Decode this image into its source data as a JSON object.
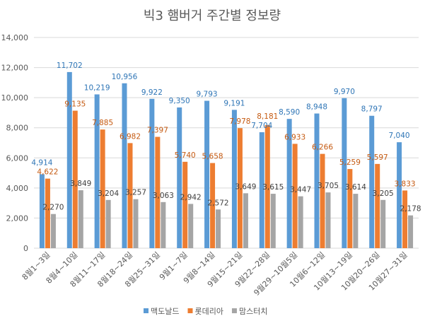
{
  "chart_data": {
    "type": "bar",
    "title": "빅3 햄버거 주간별 정보량",
    "xlabel": "",
    "ylabel": "",
    "ylim": [
      0,
      14000
    ],
    "yticks": [
      "0",
      "2,000",
      "4,000",
      "6,000",
      "8,000",
      "10,000",
      "12,000",
      "14,000"
    ],
    "grid": true,
    "legend_position": "bottom",
    "categories": [
      "8월1~3일",
      "8월4~10일",
      "8월11~17일",
      "8월18~24일",
      "8월25~31일",
      "9월1~7일",
      "9월8~14일",
      "9월15~21일",
      "9월22~28일",
      "9월29~10월5일",
      "10월6~12일",
      "10월13~19일",
      "10월20~26일",
      "10월27~31일"
    ],
    "series": [
      {
        "name": "맥도날드",
        "color": "#5B9BD5",
        "label_color": "#2E75B6",
        "values": [
          4914,
          11702,
          10219,
          10956,
          9922,
          9350,
          9793,
          9191,
          7704,
          8590,
          8948,
          9970,
          8797,
          7040
        ]
      },
      {
        "name": "롯데리아",
        "color": "#ED7D31",
        "label_color": "#C55A11",
        "values": [
          4622,
          9135,
          7885,
          6982,
          7397,
          5740,
          5658,
          7978,
          8181,
          6933,
          6266,
          5259,
          5597,
          3833
        ]
      },
      {
        "name": "맘스터치",
        "color": "#A5A5A5",
        "label_color": "#404040",
        "values": [
          2270,
          3849,
          3204,
          3257,
          3063,
          2942,
          2572,
          3649,
          3615,
          3447,
          3705,
          3614,
          3205,
          2178
        ]
      }
    ]
  }
}
